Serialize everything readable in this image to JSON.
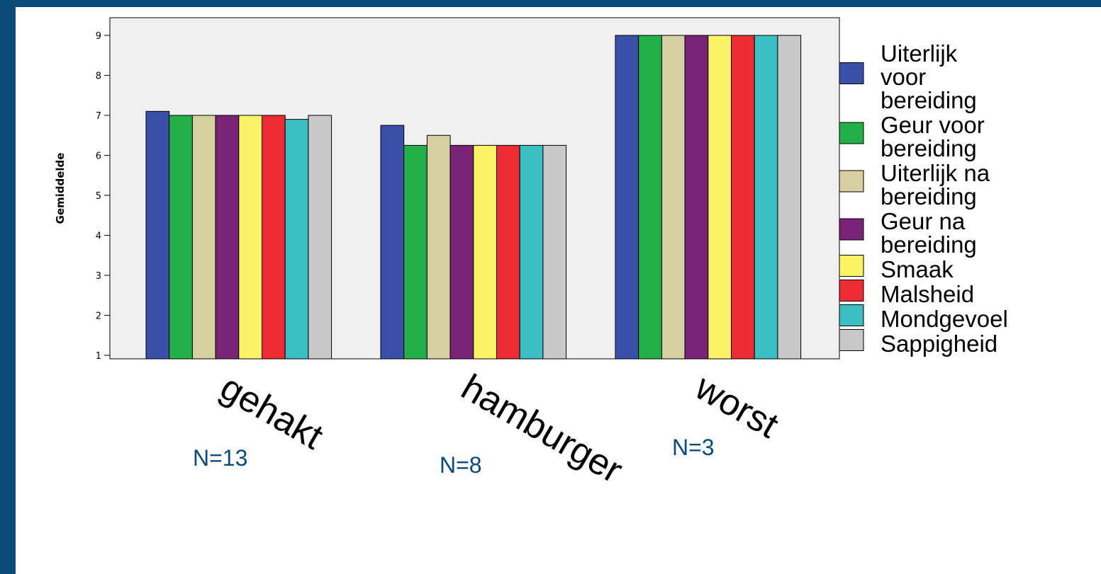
{
  "chart_data": {
    "type": "bar",
    "title": "",
    "xlabel": "",
    "ylabel": "Gemiddelde",
    "ylim": [
      1,
      9.4
    ],
    "yticks": [
      1,
      2,
      3,
      4,
      5,
      6,
      7,
      8,
      9
    ],
    "grid": false,
    "legend_position": "right",
    "categories": [
      "gehakt",
      "hamburger",
      "worst"
    ],
    "annotations": [
      "N=13",
      "N=8",
      "N=3"
    ],
    "series": [
      {
        "name": "Uiterlijk voor bereiding",
        "name_lines": [
          "Uiterlijk",
          "voor",
          "bereiding"
        ],
        "color": "#3a4fa8",
        "values": [
          7.1,
          6.75,
          9
        ]
      },
      {
        "name": "Geur voor bereiding",
        "name_lines": [
          "Geur voor",
          "bereiding"
        ],
        "color": "#23b04a",
        "values": [
          7.0,
          6.25,
          9
        ]
      },
      {
        "name": "Uiterlijk na bereiding",
        "name_lines": [
          "Uiterlijk na",
          "bereiding"
        ],
        "color": "#d6d0a0",
        "values": [
          7.0,
          6.5,
          9
        ]
      },
      {
        "name": "Geur na bereiding",
        "name_lines": [
          "Geur na",
          "bereiding"
        ],
        "color": "#7a2478",
        "values": [
          7.0,
          6.25,
          9
        ]
      },
      {
        "name": "Smaak",
        "name_lines": [
          "Smaak"
        ],
        "color": "#fbf266",
        "values": [
          7.0,
          6.25,
          9
        ]
      },
      {
        "name": "Malsheid",
        "name_lines": [
          "Malsheid"
        ],
        "color": "#ec2c32",
        "values": [
          7.0,
          6.25,
          9
        ]
      },
      {
        "name": "Mondgevoel",
        "name_lines": [
          "Mondgevoel"
        ],
        "color": "#3cbfc4",
        "values": [
          6.9,
          6.25,
          9
        ]
      },
      {
        "name": "Sappigheid",
        "name_lines": [
          "Sappigheid"
        ],
        "color": "#c8c8c8",
        "values": [
          7.0,
          6.25,
          9
        ]
      }
    ]
  },
  "colors": {
    "frame": "#0b4a78",
    "plot_background": "#f0f0f0",
    "annotation_text": "#0b4a78"
  }
}
